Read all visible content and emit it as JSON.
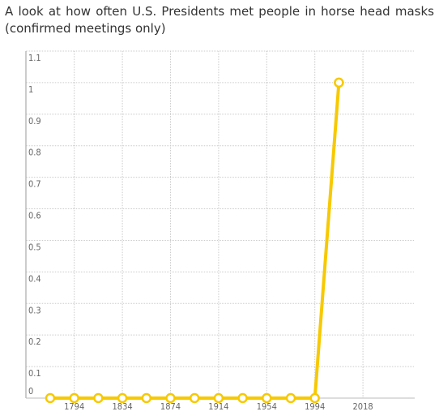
{
  "chart_data": {
    "type": "line",
    "title": "A look at how often U.S. Presidents met people in horse head masks (confirmed meetings only)",
    "categories": [
      null,
      "1794",
      null,
      "1834",
      null,
      "1874",
      null,
      "1914",
      null,
      "1954",
      null,
      "1994",
      null,
      "2018"
    ],
    "series": [
      {
        "color": "#f7c900",
        "values": [
          0,
          0,
          0,
          0,
          0,
          0,
          0,
          0,
          0,
          0,
          0,
          0,
          1,
          null
        ]
      }
    ],
    "ylim": [
      0,
      1.1
    ],
    "yticks": [
      0,
      0.1,
      0.2,
      0.3,
      0.4,
      0.5,
      0.6,
      0.7,
      0.8,
      0.9,
      1,
      1.1
    ],
    "grid": true
  }
}
